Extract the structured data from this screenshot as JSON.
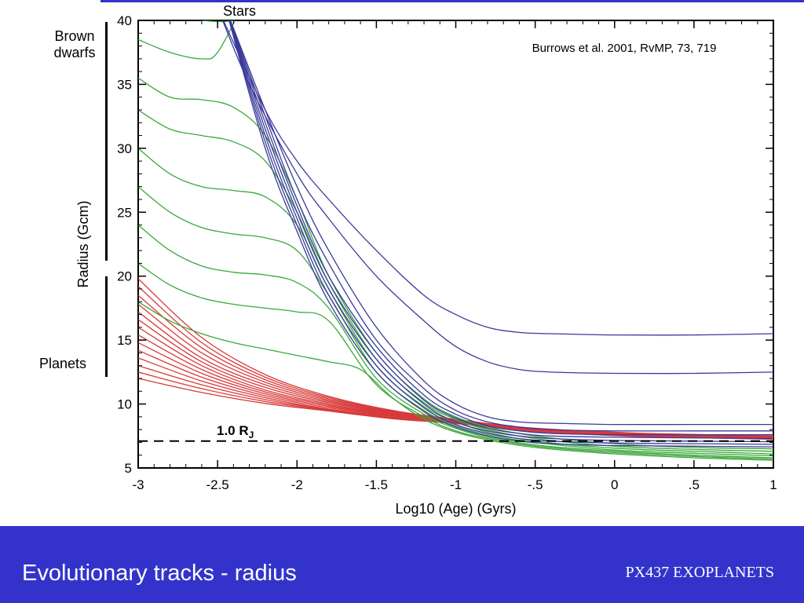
{
  "slide": {
    "title": "Evolutionary tracks - radius",
    "course": "PX437 EXOPLANETS",
    "citation": "Burrows et al. 2001, RvMP, 73, 719",
    "labels": {
      "stars": "Stars",
      "brown_dwarfs_line1": "Brown",
      "brown_dwarfs_line2": "dwarfs",
      "planets": "Planets"
    }
  },
  "colors": {
    "banner": "#3333cc",
    "stars": "#3a3a9a",
    "brown_dwarfs": "#3aa83a",
    "planets": "#d83a3a",
    "reference": "#000000"
  },
  "chart_data": {
    "type": "line",
    "xlabel": "Log10 (Age) (Gyrs)",
    "ylabel": "Radius (Gcm)",
    "xlim": [
      -3,
      1
    ],
    "ylim": [
      5,
      40
    ],
    "x_ticks": [
      -3,
      -2.5,
      -2,
      -1.5,
      -1,
      -0.5,
      0,
      0.5,
      1
    ],
    "x_tick_labels": [
      "-3",
      "-2.5",
      "-2",
      "-1.5",
      "-1",
      "-.5",
      "0",
      ".5",
      "1"
    ],
    "y_ticks": [
      5,
      10,
      15,
      20,
      25,
      30,
      35,
      40
    ],
    "y_tick_labels": [
      "5",
      "10",
      "15",
      "20",
      "25",
      "30",
      "35",
      "40"
    ],
    "grid": false,
    "reference_line": {
      "y": 7.1,
      "style": "dashed",
      "label": "1.0 R",
      "subscript": "J"
    },
    "groups": [
      {
        "name": "Stars",
        "color_key": "stars",
        "series": [
          {
            "x": [
              -2.5,
              -2.2,
              -2.0,
              -1.8,
              -1.5,
              -1.2,
              -1.0,
              -0.8,
              -0.6,
              -0.4,
              0,
              0.5,
              1
            ],
            "y": [
              41,
              33,
              29,
              26,
              22,
              18.5,
              17,
              16,
              15.6,
              15.5,
              15.4,
              15.4,
              15.5
            ]
          },
          {
            "x": [
              -2.5,
              -2.3,
              -2.0,
              -1.8,
              -1.5,
              -1.2,
              -1.0,
              -0.8,
              -0.6,
              -0.4,
              0,
              0.5,
              1
            ],
            "y": [
              41,
              35,
              28,
              24.5,
              20,
              16.5,
              14.5,
              13.3,
              12.7,
              12.5,
              12.4,
              12.4,
              12.5
            ]
          },
          {
            "x": [
              -2.45,
              -2.2,
              -2.0,
              -1.8,
              -1.5,
              -1.2,
              -1.0,
              -0.8,
              -0.6,
              -0.4,
              0,
              0.5,
              1
            ],
            "y": [
              41,
              33,
              27,
              22,
              16,
              11.8,
              10,
              9.0,
              8.6,
              8.5,
              8.4,
              8.4,
              8.4
            ]
          },
          {
            "x": [
              -2.45,
              -2.2,
              -2.0,
              -1.8,
              -1.5,
              -1.2,
              -1.0,
              -0.8,
              -0.6,
              -0.4,
              0,
              0.5,
              1
            ],
            "y": [
              41,
              32.5,
              26,
              21,
              15,
              11.2,
              9.5,
              8.6,
              8.2,
              8.0,
              7.9,
              7.9,
              7.9
            ]
          },
          {
            "x": [
              -2.45,
              -2.2,
              -2.0,
              -1.8,
              -1.5,
              -1.2,
              -1.0,
              -0.8,
              -0.6,
              -0.4,
              0,
              0.5,
              1
            ],
            "y": [
              41,
              32,
              25.5,
              20,
              14.5,
              10.7,
              9.2,
              8.3,
              7.9,
              7.7,
              7.6,
              7.6,
              7.6
            ]
          },
          {
            "x": [
              -2.45,
              -2.2,
              -2.0,
              -1.8,
              -1.5,
              -1.2,
              -1.0,
              -0.8,
              -0.6,
              -0.4,
              0,
              0.5,
              1
            ],
            "y": [
              41,
              31.5,
              25,
              19.5,
              14,
              10.3,
              8.9,
              8.1,
              7.7,
              7.5,
              7.4,
              7.35,
              7.3
            ]
          },
          {
            "x": [
              -2.45,
              -2.2,
              -2.0,
              -1.8,
              -1.5,
              -1.2,
              -1.0,
              -0.8,
              -0.6,
              -0.4,
              0,
              0.5,
              1
            ],
            "y": [
              41,
              31,
              24.5,
              19,
              13.5,
              10,
              8.6,
              7.9,
              7.5,
              7.3,
              7.15,
              7.1,
              7.05
            ]
          },
          {
            "x": [
              -2.45,
              -2.2,
              -2.0,
              -1.8,
              -1.5,
              -1.2,
              -1.0,
              -0.8,
              -0.6,
              -0.4,
              0,
              0.5,
              1
            ],
            "y": [
              41,
              30.5,
              24,
              18.5,
              13,
              9.7,
              8.4,
              7.7,
              7.3,
              7.1,
              6.95,
              6.9,
              6.85
            ]
          },
          {
            "x": [
              -2.45,
              -2.2,
              -2.0,
              -1.8,
              -1.5,
              -1.2,
              -1.0,
              -0.8,
              -0.6,
              -0.4,
              0,
              0.5,
              1
            ],
            "y": [
              41,
              30,
              23.5,
              18,
              12.5,
              9.4,
              8.2,
              7.5,
              7.1,
              6.9,
              6.75,
              6.7,
              6.65
            ]
          }
        ]
      },
      {
        "name": "Brown dwarfs",
        "color_key": "brown_dwarfs",
        "series": [
          {
            "x": [
              -3,
              -2.8,
              -2.6,
              -2.4,
              -2.3
            ],
            "y": [
              41,
              40.5,
              40,
              40,
              41
            ]
          },
          {
            "x": [
              -3,
              -2.8,
              -2.6,
              -2.5,
              -2.35
            ],
            "y": [
              38.5,
              37.5,
              37,
              37.5,
              41
            ]
          },
          {
            "x": [
              -3,
              -2.8,
              -2.6,
              -2.4,
              -2.2,
              -2.0,
              -1.8,
              -1.5,
              -1.2,
              -1.0,
              -0.8,
              -0.5,
              0,
              0.5,
              1
            ],
            "y": [
              35.5,
              34,
              33.8,
              33.2,
              31,
              26,
              20,
              14,
              10.4,
              9.0,
              8.2,
              7.5,
              6.9,
              6.6,
              6.5
            ]
          },
          {
            "x": [
              -3,
              -2.8,
              -2.6,
              -2.4,
              -2.2,
              -2.0,
              -1.8,
              -1.5,
              -1.2,
              -1.0,
              -0.8,
              -0.5,
              0,
              0.5,
              1
            ],
            "y": [
              33,
              31.5,
              31,
              30.5,
              29,
              25,
              19.5,
              13.5,
              10.1,
              8.8,
              8.0,
              7.3,
              6.7,
              6.45,
              6.3
            ]
          },
          {
            "x": [
              -3,
              -2.8,
              -2.6,
              -2.4,
              -2.2,
              -2.0,
              -1.8,
              -1.5,
              -1.2,
              -1.0,
              -0.8,
              -0.5,
              0,
              0.5,
              1
            ],
            "y": [
              30,
              28,
              27,
              26.7,
              26.2,
              24,
              19,
              13,
              9.8,
              8.6,
              7.8,
              7.1,
              6.55,
              6.3,
              6.1
            ]
          },
          {
            "x": [
              -3,
              -2.8,
              -2.6,
              -2.4,
              -2.2,
              -2.0,
              -1.8,
              -1.5,
              -1.2,
              -1.0,
              -0.8,
              -0.5,
              0,
              0.5,
              1
            ],
            "y": [
              27,
              25,
              23.8,
              23.3,
              23,
              22,
              18.5,
              12.5,
              9.5,
              8.3,
              7.6,
              7.0,
              6.4,
              6.15,
              5.95
            ]
          },
          {
            "x": [
              -3,
              -2.8,
              -2.6,
              -2.4,
              -2.2,
              -2.0,
              -1.8,
              -1.5,
              -1.2,
              -1.0,
              -0.8,
              -0.5,
              0,
              0.5,
              1
            ],
            "y": [
              24,
              22,
              20.8,
              20.3,
              20.1,
              19.5,
              17.5,
              12,
              9.2,
              8.1,
              7.4,
              6.8,
              6.3,
              6.0,
              5.8
            ]
          },
          {
            "x": [
              -3,
              -2.8,
              -2.6,
              -2.4,
              -2.2,
              -2.0,
              -1.8,
              -1.5,
              -1.2,
              -1.0,
              -0.8,
              -0.5,
              0,
              0.5,
              1
            ],
            "y": [
              21,
              19.3,
              18.3,
              17.8,
              17.5,
              17.2,
              16.5,
              11.5,
              9.0,
              7.9,
              7.3,
              6.7,
              6.2,
              5.9,
              5.7
            ]
          },
          {
            "x": [
              -3,
              -2.8,
              -2.6,
              -2.4,
              -2.2,
              -2.0,
              -1.8,
              -1.6,
              -1.4,
              -1.2,
              -1.0,
              -0.8,
              -0.5,
              0,
              0.5,
              1
            ],
            "y": [
              18,
              16.5,
              15.5,
              14.8,
              14.3,
              13.8,
              13.3,
              12.7,
              10.5,
              8.8,
              7.8,
              7.2,
              6.6,
              6.1,
              5.8,
              5.6
            ]
          }
        ]
      },
      {
        "name": "Planets",
        "color_key": "planets",
        "series": [
          {
            "x": [
              -3,
              -2.6,
              -2.2,
              -1.8,
              -1.4,
              -1.0,
              -0.6,
              -0.2,
              0.2,
              0.6,
              1
            ],
            "y": [
              19.8,
              15.2,
              12.3,
              10.6,
              9.5,
              8.8,
              8.2,
              7.9,
              7.7,
              7.6,
              7.5
            ]
          },
          {
            "x": [
              -3,
              -2.6,
              -2.2,
              -1.8,
              -1.4,
              -1.0,
              -0.6,
              -0.2,
              0.2,
              0.6,
              1
            ],
            "y": [
              19.2,
              14.8,
              12.1,
              10.5,
              9.45,
              8.75,
              8.18,
              7.88,
              7.68,
              7.58,
              7.48
            ]
          },
          {
            "x": [
              -3,
              -2.6,
              -2.2,
              -1.8,
              -1.4,
              -1.0,
              -0.6,
              -0.2,
              0.2,
              0.6,
              1
            ],
            "y": [
              18.5,
              14.4,
              11.9,
              10.4,
              9.4,
              8.7,
              8.16,
              7.86,
              7.66,
              7.56,
              7.46
            ]
          },
          {
            "x": [
              -3,
              -2.6,
              -2.2,
              -1.8,
              -1.4,
              -1.0,
              -0.6,
              -0.2,
              0.2,
              0.6,
              1
            ],
            "y": [
              17.8,
              14.0,
              11.7,
              10.3,
              9.35,
              8.68,
              8.14,
              7.84,
              7.64,
              7.54,
              7.44
            ]
          },
          {
            "x": [
              -3,
              -2.6,
              -2.2,
              -1.8,
              -1.4,
              -1.0,
              -0.6,
              -0.2,
              0.2,
              0.6,
              1
            ],
            "y": [
              17.2,
              13.6,
              11.5,
              10.2,
              9.3,
              8.66,
              8.12,
              7.82,
              7.62,
              7.52,
              7.42
            ]
          },
          {
            "x": [
              -3,
              -2.6,
              -2.2,
              -1.8,
              -1.4,
              -1.0,
              -0.6,
              -0.2,
              0.2,
              0.6,
              1
            ],
            "y": [
              16.6,
              13.3,
              11.3,
              10.1,
              9.25,
              8.64,
              8.1,
              7.8,
              7.6,
              7.5,
              7.4
            ]
          },
          {
            "x": [
              -3,
              -2.6,
              -2.2,
              -1.8,
              -1.4,
              -1.0,
              -0.6,
              -0.2,
              0.2,
              0.6,
              1
            ],
            "y": [
              16.0,
              13.0,
              11.1,
              10.0,
              9.2,
              8.62,
              8.08,
              7.78,
              7.58,
              7.48,
              7.38
            ]
          },
          {
            "x": [
              -3,
              -2.6,
              -2.2,
              -1.8,
              -1.4,
              -1.0,
              -0.6,
              -0.2,
              0.2,
              0.6,
              1
            ],
            "y": [
              15.4,
              12.7,
              10.95,
              9.9,
              9.15,
              8.6,
              8.06,
              7.76,
              7.56,
              7.46,
              7.36
            ]
          },
          {
            "x": [
              -3,
              -2.6,
              -2.2,
              -1.8,
              -1.4,
              -1.0,
              -0.6,
              -0.2,
              0.2,
              0.6,
              1
            ],
            "y": [
              14.8,
              12.4,
              10.8,
              9.8,
              9.1,
              8.58,
              8.04,
              7.74,
              7.54,
              7.44,
              7.34
            ]
          },
          {
            "x": [
              -3,
              -2.6,
              -2.2,
              -1.8,
              -1.4,
              -1.0,
              -0.6,
              -0.2,
              0.2,
              0.6,
              1
            ],
            "y": [
              14.2,
              12.1,
              10.65,
              9.7,
              9.05,
              8.56,
              8.02,
              7.72,
              7.52,
              7.42,
              7.32
            ]
          },
          {
            "x": [
              -3,
              -2.6,
              -2.2,
              -1.8,
              -1.4,
              -1.0,
              -0.6,
              -0.2,
              0.2,
              0.6,
              1
            ],
            "y": [
              13.6,
              11.8,
              10.5,
              9.6,
              9.0,
              8.54,
              8.0,
              7.7,
              7.5,
              7.4,
              7.3
            ]
          },
          {
            "x": [
              -3,
              -2.6,
              -2.2,
              -1.8,
              -1.4,
              -1.0,
              -0.6,
              -0.2,
              0.2,
              0.6,
              1
            ],
            "y": [
              13.0,
              11.5,
              10.35,
              9.55,
              8.95,
              8.52,
              7.98,
              7.68,
              7.48,
              7.38,
              7.28
            ]
          },
          {
            "x": [
              -3,
              -2.6,
              -2.2,
              -1.8,
              -1.4,
              -1.0,
              -0.6,
              -0.2,
              0.2,
              0.6,
              1
            ],
            "y": [
              12.5,
              11.2,
              10.2,
              9.5,
              8.9,
              8.5,
              7.96,
              7.66,
              7.46,
              7.36,
              7.26
            ]
          },
          {
            "x": [
              -3,
              -2.6,
              -2.2,
              -1.8,
              -1.4,
              -1.0,
              -0.6,
              -0.2,
              0.2,
              0.6,
              1
            ],
            "y": [
              12.0,
              10.9,
              10.05,
              9.45,
              8.85,
              8.48,
              7.94,
              7.64,
              7.44,
              7.34,
              7.24
            ]
          }
        ]
      }
    ]
  }
}
